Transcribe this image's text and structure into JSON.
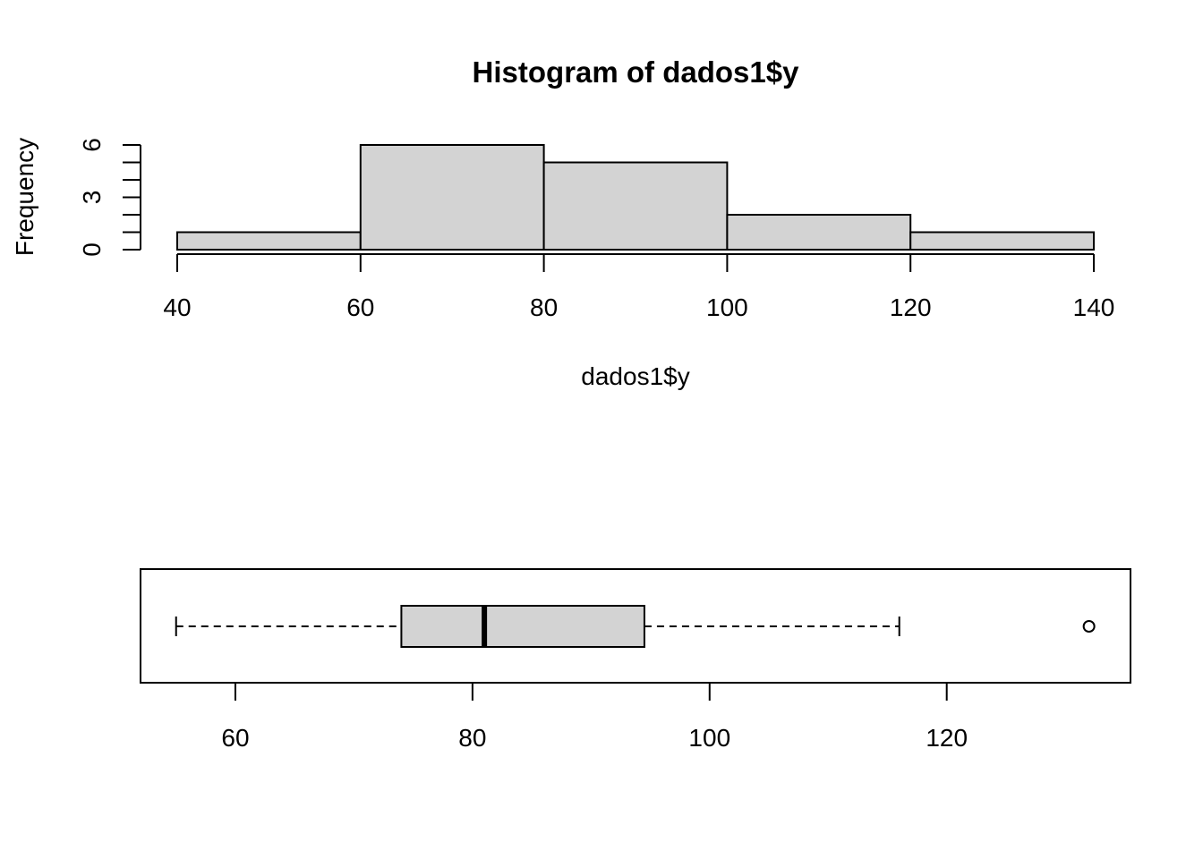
{
  "chart_data": [
    {
      "type": "histogram",
      "title": "Histogram of dados1$y",
      "xlabel": "dados1$y",
      "ylabel": "Frequency",
      "bins": [
        {
          "from": 40,
          "to": 60,
          "count": 1
        },
        {
          "from": 60,
          "to": 80,
          "count": 6
        },
        {
          "from": 80,
          "to": 100,
          "count": 5
        },
        {
          "from": 100,
          "to": 120,
          "count": 2
        },
        {
          "from": 120,
          "to": 140,
          "count": 1
        }
      ],
      "xlim": [
        40,
        140
      ],
      "ylim": [
        0,
        6
      ],
      "x_ticks": [
        "40",
        "60",
        "80",
        "100",
        "120",
        "140"
      ],
      "y_ticks": [
        "0",
        "3",
        "6"
      ],
      "bar_color": "#d3d3d3"
    },
    {
      "type": "boxplot",
      "orientation": "horizontal",
      "stats": {
        "whisker_low": 55,
        "q1": 74,
        "median": 81,
        "q3": 94.5,
        "whisker_high": 116,
        "outliers": [
          132
        ]
      },
      "xlim": [
        52,
        135.5
      ],
      "x_ticks": [
        "60",
        "80",
        "100",
        "120"
      ],
      "box_color": "#d3d3d3"
    }
  ]
}
